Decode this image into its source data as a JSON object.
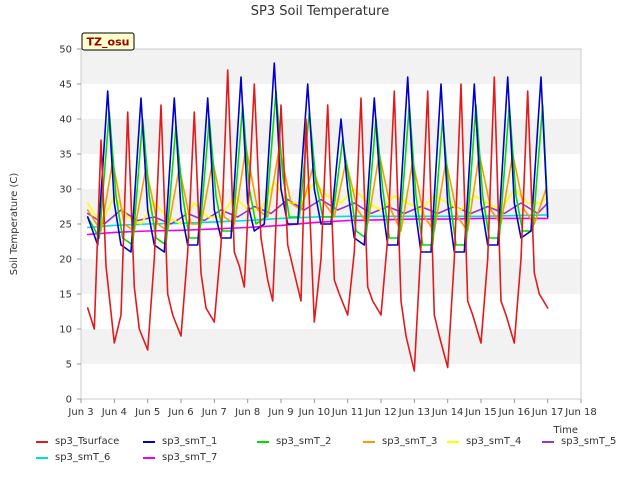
{
  "chart_data": {
    "type": "line",
    "title": "SP3 Soil Temperature",
    "xlabel": "Time",
    "ylabel": "Soil Temperature (C)",
    "annotation": "TZ_osu",
    "xlim": [
      3,
      18
    ],
    "ylim": [
      0,
      50
    ],
    "x_ticks": [
      3,
      4,
      5,
      6,
      7,
      8,
      9,
      10,
      11,
      12,
      13,
      14,
      15,
      16,
      17,
      18
    ],
    "x_tick_labels": [
      "Jun 3",
      "Jun 4",
      "Jun 5",
      "Jun 6",
      "Jun 7",
      "Jun 8",
      "Jun 9",
      "Jun 10",
      "Jun 11",
      "Jun 12",
      "Jun 13",
      "Jun 14",
      "Jun 15",
      "Jun 16",
      "Jun 17",
      "Jun 18"
    ],
    "y_ticks": [
      0,
      5,
      10,
      15,
      20,
      25,
      30,
      35,
      40,
      45,
      50
    ],
    "grid": "horizontal bands",
    "legend_position": "bottom",
    "series": [
      {
        "name": "sp3_Tsurface",
        "color": "#e31a1c",
        "x": [
          3.2,
          3.4,
          3.6,
          3.75,
          4.0,
          4.2,
          4.4,
          4.6,
          4.75,
          5.0,
          5.2,
          5.4,
          5.6,
          5.75,
          6.0,
          6.2,
          6.4,
          6.6,
          6.75,
          7.0,
          7.2,
          7.4,
          7.6,
          7.75,
          7.9,
          8.2,
          8.4,
          8.6,
          8.75,
          9.0,
          9.2,
          9.4,
          9.6,
          9.75,
          10.0,
          10.2,
          10.4,
          10.6,
          10.75,
          11.0,
          11.2,
          11.4,
          11.6,
          11.75,
          12.0,
          12.2,
          12.4,
          12.6,
          12.75,
          13.0,
          13.2,
          13.4,
          13.6,
          13.75,
          14.0,
          14.2,
          14.4,
          14.6,
          14.75,
          15.0,
          15.2,
          15.4,
          15.6,
          15.75,
          16.0,
          16.2,
          16.4,
          16.6,
          16.75,
          17.0
        ],
        "y": [
          13,
          10,
          37,
          19,
          8,
          12,
          41,
          16,
          10,
          7,
          20,
          42,
          15,
          12,
          9,
          21,
          41,
          18,
          13,
          11,
          22,
          47,
          21,
          19,
          16,
          45,
          23,
          17,
          14,
          42,
          22,
          18,
          14,
          40,
          11,
          20,
          42,
          17,
          15,
          12,
          21,
          43,
          16,
          14,
          12,
          23,
          44,
          14,
          9,
          4,
          22,
          44,
          12,
          9,
          4.5,
          20,
          45,
          14,
          12,
          8,
          20,
          46,
          14,
          12,
          8,
          20,
          44,
          18,
          15,
          13
        ]
      },
      {
        "name": "sp3_smT_1",
        "color": "#0000cc",
        "x": [
          3.2,
          3.5,
          3.8,
          4.0,
          4.2,
          4.5,
          4.8,
          5.0,
          5.2,
          5.5,
          5.8,
          6.0,
          6.2,
          6.5,
          6.8,
          7.0,
          7.2,
          7.5,
          7.8,
          8.0,
          8.2,
          8.5,
          8.8,
          9.0,
          9.2,
          9.5,
          9.8,
          10.0,
          10.2,
          10.5,
          10.8,
          11.0,
          11.2,
          11.5,
          11.8,
          12.0,
          12.2,
          12.5,
          12.8,
          13.0,
          13.2,
          13.5,
          13.8,
          14.0,
          14.2,
          14.5,
          14.8,
          15.0,
          15.2,
          15.5,
          15.8,
          16.0,
          16.2,
          16.5,
          16.8,
          17.0
        ],
        "y": [
          26,
          22,
          44,
          28,
          22,
          21,
          43,
          27,
          22,
          21,
          43,
          27,
          22,
          22,
          43,
          27,
          23,
          23,
          46,
          28,
          24,
          25,
          48,
          30,
          25,
          25,
          45,
          30,
          25,
          25,
          40,
          30,
          23,
          22,
          43,
          29,
          22,
          22,
          46,
          28,
          21,
          21,
          45,
          28,
          21,
          21,
          45,
          28,
          22,
          22,
          46,
          28,
          23,
          24,
          46,
          26
        ]
      },
      {
        "name": "sp3_smT_2",
        "color": "#00dd00",
        "x": [
          3.2,
          3.55,
          3.85,
          4.05,
          4.25,
          4.55,
          4.85,
          5.05,
          5.25,
          5.55,
          5.85,
          6.05,
          6.25,
          6.55,
          6.85,
          7.05,
          7.25,
          7.55,
          7.85,
          8.05,
          8.25,
          8.55,
          8.85,
          9.05,
          9.25,
          9.55,
          9.85,
          10.05,
          10.25,
          10.55,
          10.85,
          11.05,
          11.25,
          11.55,
          11.85,
          12.05,
          12.25,
          12.55,
          12.85,
          13.05,
          13.25,
          13.55,
          13.85,
          14.05,
          14.25,
          14.55,
          14.85,
          15.05,
          15.25,
          15.55,
          15.85,
          16.05,
          16.25,
          16.55,
          16.85,
          17.0
        ],
        "y": [
          26,
          23,
          41,
          29,
          23,
          22,
          40,
          29,
          23,
          22,
          39,
          29,
          23,
          23,
          40,
          29,
          24,
          24,
          42,
          30,
          25,
          26,
          44,
          32,
          26,
          26,
          41,
          31,
          26,
          26,
          37,
          31,
          24,
          23,
          40,
          30,
          23,
          23,
          42,
          29,
          22,
          22,
          40,
          29,
          22,
          22,
          42,
          29,
          23,
          23,
          42,
          29,
          24,
          24,
          42,
          27
        ]
      },
      {
        "name": "sp3_smT_3",
        "color": "#ff9900",
        "x": [
          3.2,
          3.6,
          3.95,
          4.3,
          4.6,
          4.95,
          5.3,
          5.6,
          5.95,
          6.3,
          6.6,
          6.95,
          7.3,
          7.6,
          7.95,
          8.3,
          8.6,
          8.95,
          9.3,
          9.6,
          9.95,
          10.3,
          10.6,
          10.95,
          11.3,
          11.6,
          11.95,
          12.3,
          12.6,
          12.95,
          13.3,
          13.6,
          13.95,
          14.3,
          14.6,
          14.95,
          15.3,
          15.6,
          15.95,
          16.3,
          16.6,
          16.95
        ],
        "y": [
          27,
          24,
          34,
          25,
          24,
          33,
          25,
          24,
          33,
          25,
          25,
          34,
          26,
          25,
          36,
          27,
          26,
          36,
          28,
          27,
          33,
          28,
          26,
          34,
          27,
          25,
          35,
          27,
          24,
          34,
          26,
          24,
          34,
          26,
          24,
          35,
          27,
          25,
          35,
          27,
          25,
          30
        ]
      },
      {
        "name": "sp3_smT_4",
        "color": "#ffff00",
        "x": [
          3.2,
          3.6,
          4.0,
          4.4,
          4.8,
          5.2,
          5.6,
          6.0,
          6.4,
          6.8,
          7.2,
          7.6,
          8.0,
          8.4,
          8.8,
          9.2,
          9.6,
          10.0,
          10.4,
          10.8,
          11.2,
          11.6,
          12.0,
          12.4,
          12.8,
          13.2,
          13.6,
          14.0,
          14.4,
          14.8,
          15.2,
          15.6,
          16.0,
          16.4,
          16.8,
          17.0
        ],
        "y": [
          28,
          25,
          29,
          26,
          25,
          28,
          26,
          25,
          28,
          26,
          26,
          29,
          27,
          27,
          31,
          28,
          28,
          31,
          29,
          28,
          30,
          28,
          27,
          29,
          28,
          27,
          29,
          28,
          27,
          29,
          28,
          27,
          30,
          28,
          28,
          29
        ]
      },
      {
        "name": "sp3_smT_5",
        "color": "#9933cc",
        "x": [
          3.2,
          3.7,
          4.2,
          4.7,
          5.2,
          5.7,
          6.2,
          6.7,
          7.2,
          7.7,
          8.2,
          8.7,
          9.2,
          9.7,
          10.2,
          10.7,
          11.2,
          11.7,
          12.2,
          12.7,
          13.2,
          13.7,
          14.2,
          14.7,
          15.2,
          15.7,
          16.2,
          16.7,
          17.0
        ],
        "y": [
          26.5,
          25,
          27,
          25.5,
          26,
          25,
          26.5,
          25.5,
          27,
          26,
          27.5,
          26.5,
          28.5,
          27,
          28.5,
          27,
          28,
          26.5,
          27.5,
          26.5,
          27.5,
          26.5,
          27.5,
          26.5,
          27.5,
          26.5,
          28,
          26.5,
          28
        ]
      },
      {
        "name": "sp3_smT_6",
        "color": "#00dddd",
        "x": [
          3.2,
          4,
          5,
          6,
          7,
          8,
          9,
          10,
          11,
          12,
          13,
          14,
          15,
          16,
          17
        ],
        "y": [
          24.5,
          24.8,
          25,
          25.1,
          25.3,
          25.5,
          25.8,
          26,
          26.1,
          26.1,
          26.1,
          26.1,
          26.1,
          26.2,
          26.3
        ]
      },
      {
        "name": "sp3_smT_7",
        "color": "#ee00ee",
        "x": [
          3.2,
          4,
          5,
          6,
          7,
          8,
          9,
          10,
          11,
          12,
          13,
          14,
          15,
          16,
          17
        ],
        "y": [
          23.5,
          23.8,
          24,
          24.1,
          24.3,
          24.5,
          24.8,
          25.2,
          25.5,
          25.6,
          25.7,
          25.7,
          25.8,
          25.8,
          25.8
        ]
      }
    ]
  }
}
